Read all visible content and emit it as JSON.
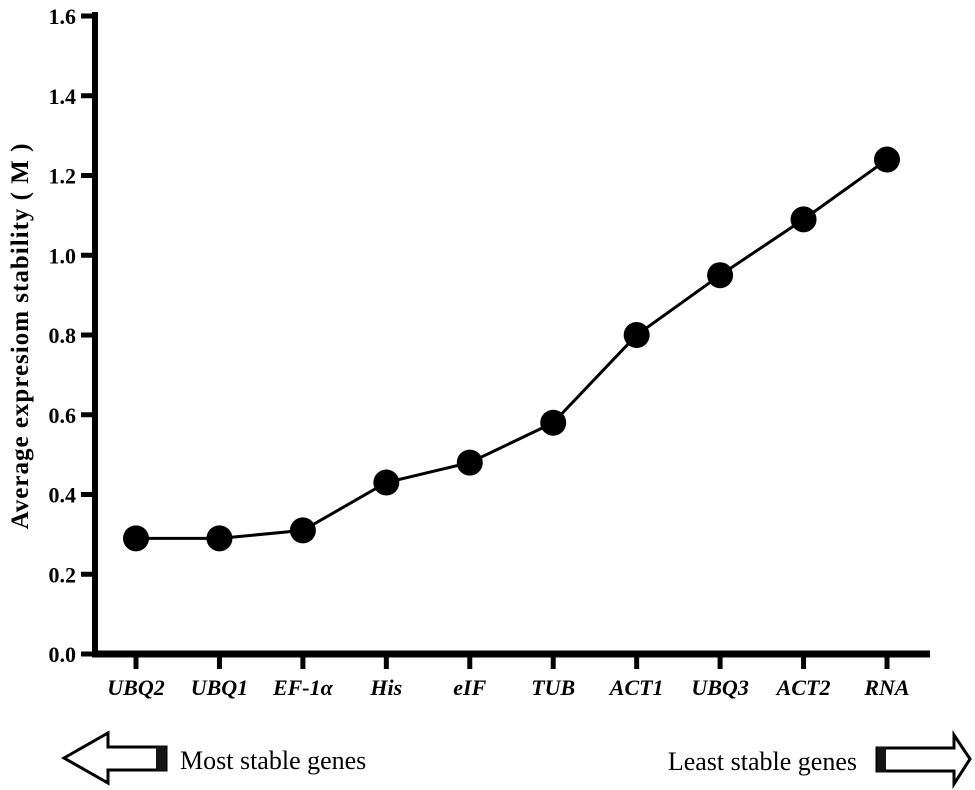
{
  "chart_data": {
    "type": "line",
    "categories": [
      "UBQ2",
      "UBQ1",
      "EF-1α",
      "His",
      "eIF",
      "TUB",
      "ACT1",
      "UBQ3",
      "ACT2",
      "RNA"
    ],
    "values": [
      0.29,
      0.29,
      0.31,
      0.43,
      0.48,
      0.58,
      0.8,
      0.95,
      1.09,
      1.24
    ],
    "title": "",
    "xlabel": "",
    "ylabel": "Average expresiom stability ( M )",
    "ylim": [
      0.0,
      1.6
    ],
    "yticks": [
      "0.0",
      "0.2",
      "0.4",
      "0.6",
      "0.8",
      "1.0",
      "1.2",
      "1.4",
      "1.6"
    ],
    "grid": false,
    "legend": "none",
    "marker": "filled-circle",
    "line_color": "#000000",
    "marker_color": "#000000",
    "axis_color": "#000000"
  },
  "annotations": {
    "left_arrow_label": "Most stable genes",
    "right_arrow_label": "Least stable genes"
  }
}
